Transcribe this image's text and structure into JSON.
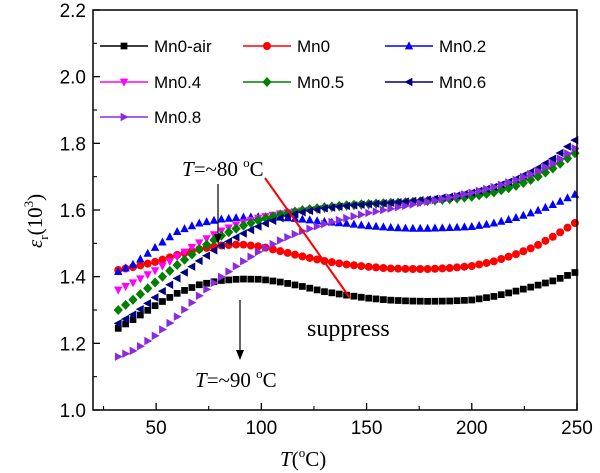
{
  "chart_data": {
    "type": "scatter",
    "xlim": [
      20,
      250
    ],
    "ylim": [
      1.0,
      2.2
    ],
    "x_ticks": [
      "50",
      "100",
      "150",
      "200",
      "250"
    ],
    "y_ticks": [
      "1.0",
      "1.2",
      "1.4",
      "1.6",
      "1.8",
      "2.0",
      "2.2"
    ],
    "legend_position": "top-left",
    "series": [
      {
        "name": "Mn0-air",
        "color": "#000000",
        "marker": "square",
        "points": [
          [
            32,
            1.245
          ],
          [
            40,
            1.275
          ],
          [
            50,
            1.315
          ],
          [
            60,
            1.35
          ],
          [
            70,
            1.375
          ],
          [
            80,
            1.388
          ],
          [
            90,
            1.393
          ],
          [
            100,
            1.392
          ],
          [
            110,
            1.383
          ],
          [
            120,
            1.37
          ],
          [
            130,
            1.355
          ],
          [
            140,
            1.345
          ],
          [
            150,
            1.336
          ],
          [
            160,
            1.33
          ],
          [
            170,
            1.327
          ],
          [
            180,
            1.326
          ],
          [
            190,
            1.327
          ],
          [
            200,
            1.33
          ],
          [
            210,
            1.34
          ],
          [
            220,
            1.355
          ],
          [
            230,
            1.372
          ],
          [
            240,
            1.39
          ],
          [
            250,
            1.415
          ]
        ]
      },
      {
        "name": "Mn0",
        "color": "#ff0000",
        "marker": "circle",
        "points": [
          [
            32,
            1.42
          ],
          [
            40,
            1.43
          ],
          [
            50,
            1.445
          ],
          [
            60,
            1.465
          ],
          [
            70,
            1.482
          ],
          [
            80,
            1.493
          ],
          [
            90,
            1.497
          ],
          [
            100,
            1.49
          ],
          [
            110,
            1.475
          ],
          [
            120,
            1.46
          ],
          [
            130,
            1.447
          ],
          [
            140,
            1.437
          ],
          [
            150,
            1.43
          ],
          [
            160,
            1.425
          ],
          [
            170,
            1.423
          ],
          [
            180,
            1.423
          ],
          [
            190,
            1.426
          ],
          [
            200,
            1.432
          ],
          [
            210,
            1.445
          ],
          [
            220,
            1.465
          ],
          [
            230,
            1.49
          ],
          [
            240,
            1.525
          ],
          [
            250,
            1.565
          ]
        ]
      },
      {
        "name": "Mn0.2",
        "color": "#0000ff",
        "marker": "triangle-up",
        "points": [
          [
            32,
            1.415
          ],
          [
            40,
            1.44
          ],
          [
            50,
            1.49
          ],
          [
            60,
            1.535
          ],
          [
            70,
            1.56
          ],
          [
            80,
            1.572
          ],
          [
            90,
            1.578
          ],
          [
            100,
            1.58
          ],
          [
            110,
            1.578
          ],
          [
            120,
            1.572
          ],
          [
            130,
            1.565
          ],
          [
            140,
            1.56
          ],
          [
            150,
            1.553
          ],
          [
            160,
            1.548
          ],
          [
            170,
            1.545
          ],
          [
            180,
            1.545
          ],
          [
            190,
            1.547
          ],
          [
            200,
            1.55
          ],
          [
            210,
            1.56
          ],
          [
            220,
            1.575
          ],
          [
            230,
            1.595
          ],
          [
            240,
            1.62
          ],
          [
            250,
            1.65
          ]
        ]
      },
      {
        "name": "Mn0.4",
        "color": "#ff00ff",
        "marker": "triangle-down",
        "points": [
          [
            32,
            1.36
          ],
          [
            40,
            1.385
          ],
          [
            50,
            1.42
          ],
          [
            60,
            1.46
          ],
          [
            70,
            1.5
          ],
          [
            80,
            1.535
          ],
          [
            90,
            1.56
          ],
          [
            100,
            1.578
          ],
          [
            110,
            1.59
          ],
          [
            120,
            1.598
          ],
          [
            130,
            1.604
          ],
          [
            140,
            1.61
          ],
          [
            150,
            1.614
          ],
          [
            160,
            1.618
          ],
          [
            170,
            1.621
          ],
          [
            180,
            1.625
          ],
          [
            190,
            1.63
          ],
          [
            200,
            1.638
          ],
          [
            210,
            1.652
          ],
          [
            220,
            1.673
          ],
          [
            230,
            1.7
          ],
          [
            240,
            1.735
          ],
          [
            250,
            1.78
          ]
        ]
      },
      {
        "name": "Mn0.5",
        "color": "#008000",
        "marker": "diamond",
        "points": [
          [
            32,
            1.3
          ],
          [
            40,
            1.335
          ],
          [
            50,
            1.385
          ],
          [
            60,
            1.435
          ],
          [
            70,
            1.48
          ],
          [
            80,
            1.52
          ],
          [
            90,
            1.55
          ],
          [
            100,
            1.572
          ],
          [
            110,
            1.588
          ],
          [
            120,
            1.6
          ],
          [
            130,
            1.608
          ],
          [
            140,
            1.614
          ],
          [
            150,
            1.618
          ],
          [
            160,
            1.621
          ],
          [
            170,
            1.624
          ],
          [
            180,
            1.628
          ],
          [
            190,
            1.633
          ],
          [
            200,
            1.64
          ],
          [
            210,
            1.652
          ],
          [
            220,
            1.67
          ],
          [
            230,
            1.695
          ],
          [
            240,
            1.73
          ],
          [
            250,
            1.775
          ]
        ]
      },
      {
        "name": "Mn0.6",
        "color": "#000080",
        "marker": "triangle-left",
        "points": [
          [
            32,
            1.26
          ],
          [
            40,
            1.29
          ],
          [
            50,
            1.34
          ],
          [
            60,
            1.395
          ],
          [
            70,
            1.445
          ],
          [
            80,
            1.49
          ],
          [
            90,
            1.525
          ],
          [
            100,
            1.555
          ],
          [
            110,
            1.578
          ],
          [
            120,
            1.594
          ],
          [
            130,
            1.605
          ],
          [
            140,
            1.612
          ],
          [
            150,
            1.617
          ],
          [
            160,
            1.621
          ],
          [
            170,
            1.626
          ],
          [
            180,
            1.632
          ],
          [
            190,
            1.64
          ],
          [
            200,
            1.652
          ],
          [
            210,
            1.668
          ],
          [
            220,
            1.69
          ],
          [
            230,
            1.72
          ],
          [
            240,
            1.76
          ],
          [
            250,
            1.815
          ]
        ]
      },
      {
        "name": "Mn0.8",
        "color": "#8a2be2",
        "marker": "triangle-right",
        "points": [
          [
            32,
            1.16
          ],
          [
            40,
            1.18
          ],
          [
            50,
            1.225
          ],
          [
            60,
            1.28
          ],
          [
            70,
            1.34
          ],
          [
            80,
            1.395
          ],
          [
            90,
            1.44
          ],
          [
            100,
            1.48
          ],
          [
            110,
            1.512
          ],
          [
            120,
            1.538
          ],
          [
            130,
            1.558
          ],
          [
            140,
            1.575
          ],
          [
            150,
            1.59
          ],
          [
            160,
            1.602
          ],
          [
            170,
            1.614
          ],
          [
            180,
            1.626
          ],
          [
            190,
            1.638
          ],
          [
            200,
            1.652
          ],
          [
            210,
            1.668
          ],
          [
            220,
            1.688
          ],
          [
            230,
            1.713
          ],
          [
            240,
            1.745
          ],
          [
            250,
            1.79
          ]
        ]
      }
    ],
    "annotations": {
      "t80": "=~80 ",
      "t90": "=~90 ",
      "suppress": "suppress"
    }
  }
}
